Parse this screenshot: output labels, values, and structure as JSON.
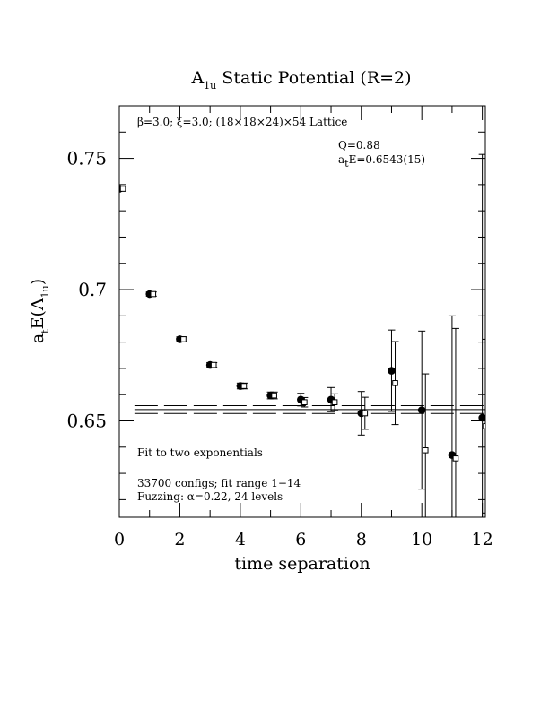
{
  "chart_data": {
    "type": "scatter",
    "title_main": "A",
    "title_sub": "1u",
    "title_rest": " Static Potential (R=2)",
    "xlabel": "time separation",
    "ylabel_main": "a",
    "ylabel_sub1": "t",
    "ylabel_mid": "E(A",
    "ylabel_sub2": "1u",
    "ylabel_end": ")",
    "xlim": [
      0,
      12.1
    ],
    "ylim": [
      0.6133,
      0.77
    ],
    "x_ticks": [
      0,
      2,
      4,
      6,
      8,
      10,
      12
    ],
    "x_tick_labels": [
      "0",
      "2",
      "4",
      "6",
      "8",
      "10",
      "12"
    ],
    "y_ticks": [
      0.65,
      0.7,
      0.75
    ],
    "y_tick_labels": [
      "0.65",
      "0.7",
      "0.75"
    ],
    "y_minor_step": 0.01,
    "x_minor_step": 1,
    "lattice_text": "β=3.0; ξ=3.0; (18×18×24)×54 Lattice",
    "q_text": "Q=0.88",
    "energy_main": "a",
    "energy_sub": "t",
    "energy_rest": "E=0.6543(15)",
    "fit_text": "Fit to two exponentials",
    "configs_text": "33700 configs; fit range 1−14",
    "fuzzing_text": "Fuzzing: α=0.22, 24 levels",
    "fit": {
      "center": 0.6543,
      "error": 0.0015,
      "x_start": 0.5,
      "x_end": 12.1
    },
    "series": [
      {
        "marker": "filled-circle",
        "x": [
          0,
          1,
          2,
          3,
          4,
          5,
          6,
          7,
          8,
          9,
          10,
          11,
          12
        ],
        "y": [
          0.7384,
          0.6983,
          0.6811,
          0.6713,
          0.6633,
          0.6597,
          0.6581,
          0.6581,
          0.6529,
          0.6691,
          0.6541,
          0.637,
          0.6512
        ],
        "err": [
          0.0006,
          0.0008,
          0.0009,
          0.0009,
          0.0011,
          0.0013,
          0.0024,
          0.0046,
          0.0083,
          0.0155,
          0.0301,
          0.053,
          0.1003
        ]
      },
      {
        "marker": "open-square",
        "x": [
          0.12,
          1.12,
          2.12,
          3.12,
          4.12,
          5.12,
          6.12,
          7.12,
          8.12,
          9.12,
          10.12,
          11.12,
          12.12
        ],
        "y": [
          0.7384,
          0.6983,
          0.6811,
          0.6713,
          0.6633,
          0.6597,
          0.6571,
          0.6571,
          0.6529,
          0.6644,
          0.6388,
          0.6357,
          0.648
        ],
        "err": [
          0.0006,
          0.0008,
          0.0009,
          0.0009,
          0.0011,
          0.0013,
          0.0018,
          0.0032,
          0.0061,
          0.0158,
          0.0291,
          0.0495,
          0.0331
        ]
      }
    ]
  }
}
